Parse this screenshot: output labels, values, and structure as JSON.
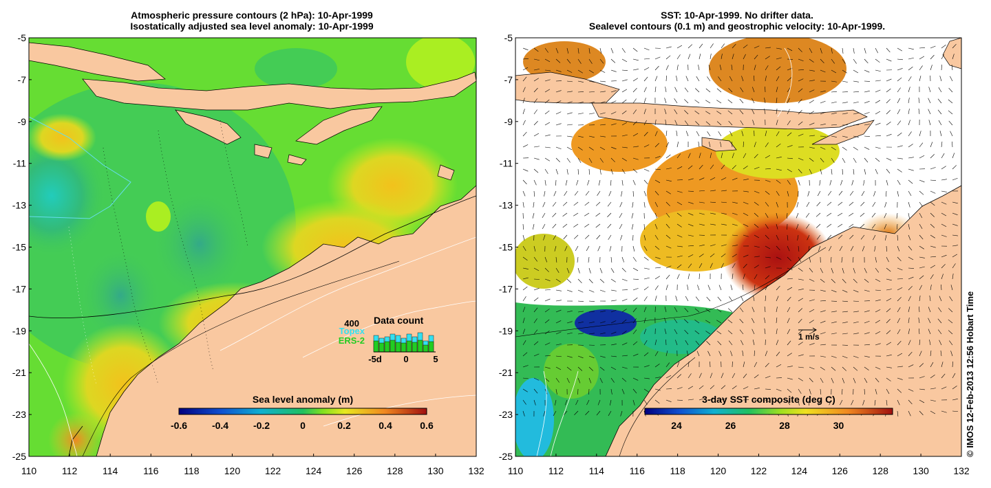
{
  "left_panel": {
    "title_line1": "Atmospheric pressure contours (2 hPa): 10-Apr-1999",
    "title_line2": "Isostatically adjusted sea level anomaly: 10-Apr-1999",
    "y_ticks": [
      "-5",
      "-7",
      "-9",
      "-11",
      "-13",
      "-15",
      "-17",
      "-19",
      "-21",
      "-23",
      "-25"
    ],
    "x_ticks": [
      "110",
      "112",
      "114",
      "116",
      "118",
      "120",
      "122",
      "124",
      "126",
      "128",
      "130",
      "132"
    ],
    "colorbar_title": "Sea level anomaly (m)",
    "colorbar_ticks": [
      "-0.6",
      "-0.4",
      "-0.2",
      "0",
      "0.2",
      "0.4",
      "0.6"
    ],
    "data_count": {
      "title": "Data count",
      "max_label": "400",
      "topex_label": "Topex",
      "ers_label": "ERS-2",
      "x_ticks": [
        "-5d",
        "0",
        "5"
      ],
      "topex_color": "#33e0f0",
      "ers_color": "#22cc22"
    }
  },
  "right_panel": {
    "title_line1": "SST: 10-Apr-1999. No drifter data.",
    "title_line2": "Sealevel contours (0.1 m) and geostrophic velocity: 10-Apr-1999.",
    "y_ticks": [
      "-5",
      "-7",
      "-9",
      "-11",
      "-13",
      "-15",
      "-17",
      "-19",
      "-21",
      "-23",
      "-25"
    ],
    "x_ticks": [
      "110",
      "112",
      "114",
      "116",
      "118",
      "120",
      "122",
      "124",
      "126",
      "128",
      "130",
      "132"
    ],
    "colorbar_title": "3-day SST composite (deg C)",
    "colorbar_ticks": [
      "24",
      "26",
      "28",
      "30"
    ],
    "velocity_scale_label": "1 m/s"
  },
  "credit": "© IMOS 12-Feb-2013 12:56 Hobart Time",
  "colors": {
    "land": "#f9c8a0",
    "sla_field": "#66dd33",
    "sla_low": "#33bb77",
    "sla_high": "#eecc22"
  }
}
